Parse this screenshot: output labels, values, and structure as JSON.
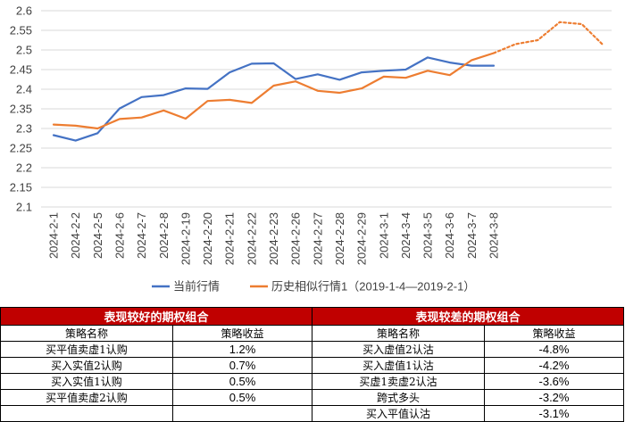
{
  "chart_data": {
    "type": "line",
    "categories": [
      "2024-2-1",
      "2024-2-2",
      "2024-2-5",
      "2024-2-6",
      "2024-2-7",
      "2024-2-8",
      "2024-2-19",
      "2024-2-20",
      "2024-2-21",
      "2024-2-22",
      "2024-2-23",
      "2024-2-26",
      "2024-2-27",
      "2024-2-28",
      "2024-2-29",
      "2024-3-1",
      "2024-3-4",
      "2024-3-5",
      "2024-3-6",
      "2024-3-7",
      "2024-3-8"
    ],
    "ylim": [
      2.1,
      2.6
    ],
    "yticks": [
      "2.1",
      "2.15",
      "2.2",
      "2.25",
      "2.3",
      "2.35",
      "2.4",
      "2.45",
      "2.5",
      "2.55",
      "2.6"
    ],
    "grid": true,
    "legend_position": "bottom",
    "series": [
      {
        "name": "当前行情",
        "color": "#4472c4",
        "values": [
          2.283,
          2.269,
          2.288,
          2.351,
          2.38,
          2.385,
          2.402,
          2.401,
          2.443,
          2.465,
          2.466,
          2.426,
          2.438,
          2.424,
          2.443,
          2.447,
          2.45,
          2.481,
          2.468,
          2.46,
          2.46
        ]
      },
      {
        "name": "历史相似行情1（2019-1-4—2019-2-1）",
        "color": "#ed7d31",
        "values": [
          2.31,
          2.307,
          2.3,
          2.324,
          2.328,
          2.346,
          2.325,
          2.37,
          2.373,
          2.365,
          2.409,
          2.42,
          2.396,
          2.391,
          2.402,
          2.432,
          2.429,
          2.447,
          2.436,
          2.474,
          2.492
        ],
        "projection": [
          2.492,
          2.515,
          2.525,
          2.571,
          2.566,
          2.511
        ]
      }
    ]
  },
  "tables": {
    "good": {
      "title": "表现较好的期权组合",
      "col_name": "策略名称",
      "col_return": "策略收益",
      "rows": [
        {
          "name": "买平值卖虚1认购",
          "return": "1.2%"
        },
        {
          "name": "买入实值2认购",
          "return": "0.7%"
        },
        {
          "name": "买入实值1认购",
          "return": "0.5%"
        },
        {
          "name": "买平值卖虚2认购",
          "return": "0.5%"
        },
        {
          "name": "",
          "return": ""
        }
      ]
    },
    "bad": {
      "title": "表现较差的期权组合",
      "col_name": "策略名称",
      "col_return": "策略收益",
      "rows": [
        {
          "name": "买入虚值2认沽",
          "return": "-4.8%"
        },
        {
          "name": "买入虚值1认沽",
          "return": "-4.2%"
        },
        {
          "name": "买虚1卖虚2认沽",
          "return": "-3.6%"
        },
        {
          "name": "跨式多头",
          "return": "-3.2%"
        },
        {
          "name": "买入平值认沽",
          "return": "-3.1%"
        }
      ]
    }
  }
}
